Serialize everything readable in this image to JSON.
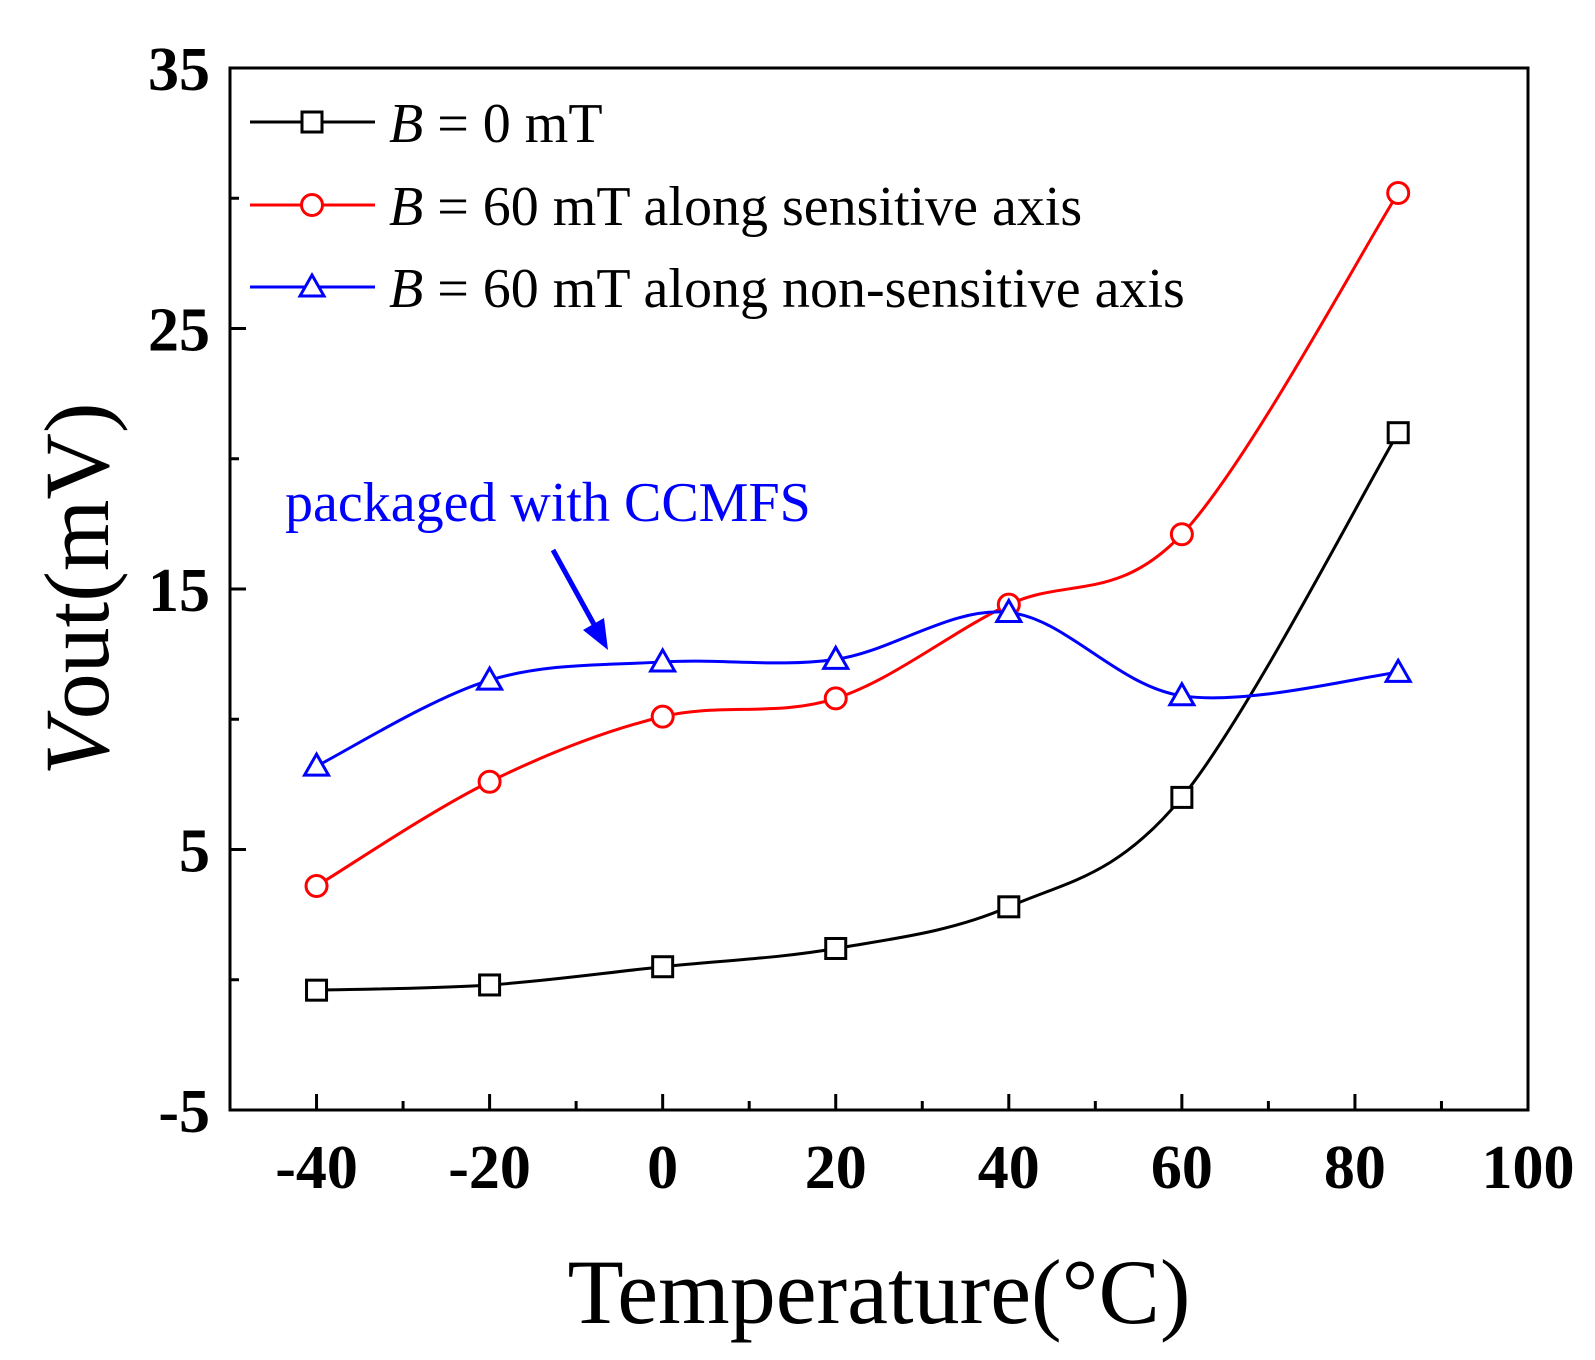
{
  "chart_data": {
    "type": "line",
    "xlabel": "Temperature(°C)",
    "ylabel_italic": "V",
    "ylabel_rest": "out(mV)",
    "xlim": [
      -50,
      100
    ],
    "ylim": [
      -5,
      35
    ],
    "xticks": [
      -40,
      -20,
      0,
      20,
      40,
      60,
      80,
      100
    ],
    "yticks": [
      -5,
      5,
      15,
      25,
      35
    ],
    "x": [
      -40,
      -20,
      0,
      20,
      40,
      60,
      85
    ],
    "series": [
      {
        "name_italic": "B",
        "name_rest": " = 0 mT",
        "color": "#000000",
        "marker": "square",
        "values": [
          -0.4,
          -0.2,
          0.5,
          1.2,
          2.8,
          7.0,
          21.0
        ]
      },
      {
        "name_italic": "B",
        "name_rest": " = 60 mT along sensitive axis",
        "color": "#ff0000",
        "marker": "circle",
        "values": [
          3.6,
          7.6,
          10.1,
          10.8,
          14.4,
          17.1,
          30.2
        ]
      },
      {
        "name_italic": "B",
        "name_rest": " = 60 mT along non-sensitive axis",
        "color": "#0000ff",
        "marker": "triangle",
        "values": [
          8.2,
          11.5,
          12.2,
          12.3,
          14.1,
          10.9,
          11.8
        ]
      }
    ],
    "legend_position": "top-left",
    "grid": false,
    "annotation": {
      "text": "packaged with CCMFS",
      "color": "#0000ff",
      "points_to": {
        "x": -5,
        "y": 12.2
      }
    }
  }
}
